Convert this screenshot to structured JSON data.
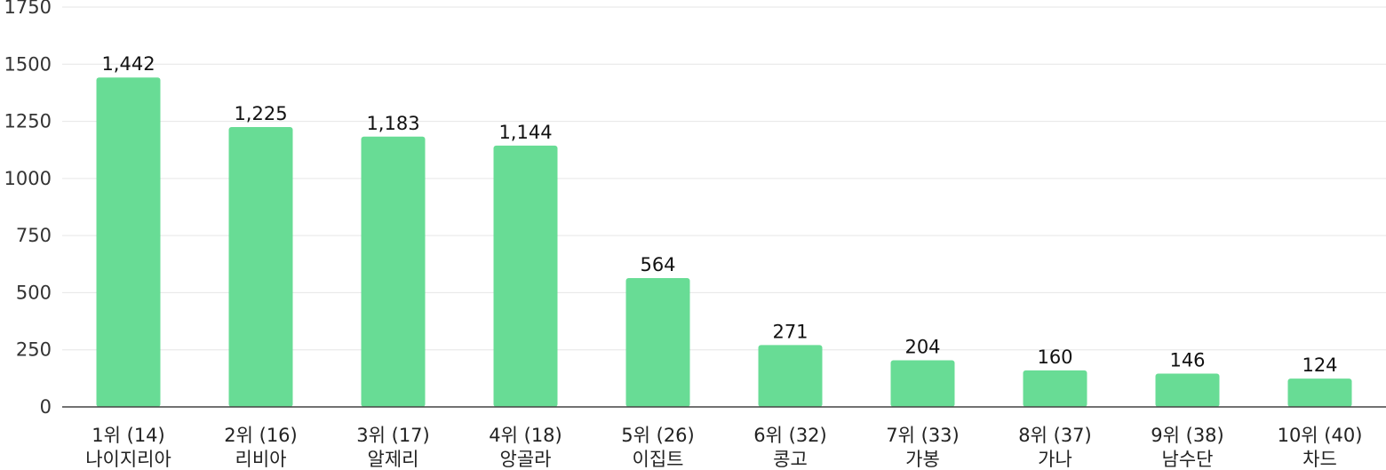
{
  "chart_data": {
    "type": "bar",
    "title": "",
    "xlabel": "",
    "ylabel": "",
    "ylim": [
      0,
      1750
    ],
    "yticks": [
      0,
      250,
      500,
      750,
      1000,
      1250,
      1500,
      1750
    ],
    "grid": true,
    "bar_color": "#68dc95",
    "categories": [
      [
        "1위 (14)",
        "나이지리아"
      ],
      [
        "2위 (16)",
        "리비아"
      ],
      [
        "3위 (17)",
        "알제리"
      ],
      [
        "4위 (18)",
        "앙골라"
      ],
      [
        "5위 (26)",
        "이집트"
      ],
      [
        "6위 (32)",
        "콩고"
      ],
      [
        "7위 (33)",
        "가봉"
      ],
      [
        "8위 (37)",
        "가나"
      ],
      [
        "9위 (38)",
        "남수단"
      ],
      [
        "10위 (40)",
        "차드"
      ]
    ],
    "values": [
      1442,
      1225,
      1183,
      1144,
      564,
      271,
      204,
      160,
      146,
      124
    ],
    "value_labels": [
      "1,442",
      "1,225",
      "1,183",
      "1,144",
      "564",
      "271",
      "204",
      "160",
      "146",
      "124"
    ]
  }
}
